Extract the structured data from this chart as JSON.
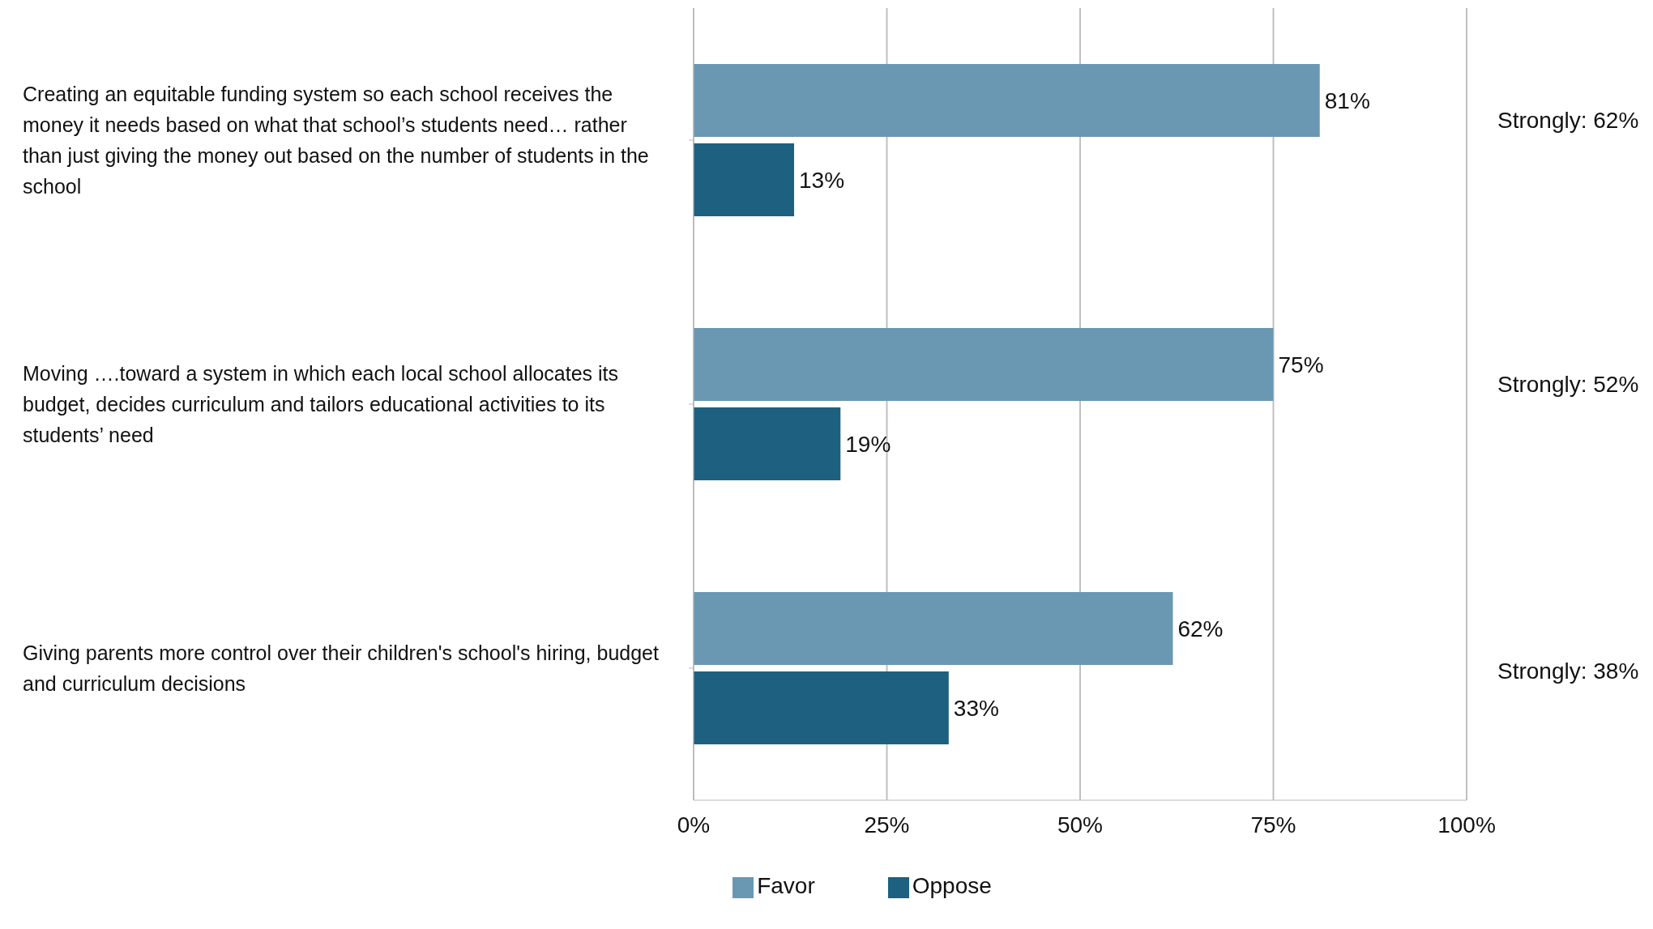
{
  "chart_data": {
    "type": "bar",
    "orientation": "horizontal",
    "categories": [
      "Creating an equitable funding system so each school receives the money it needs based on what that school’s students need… rather than just giving the money out based on the number of students in the school",
      "Moving ….toward a system in which each local school allocates its budget, decides curriculum and tailors educational activities to its students’ need",
      "Giving parents more control over their children's school's hiring, budget and curriculum decisions"
    ],
    "series": [
      {
        "name": "Favor",
        "color": "#6a98b2",
        "values": [
          81,
          75,
          62
        ],
        "value_labels": [
          "81%",
          "75%",
          "62%"
        ]
      },
      {
        "name": "Oppose",
        "color": "#1e6080",
        "values": [
          13,
          19,
          33
        ],
        "value_labels": [
          "13%",
          "19%",
          "33%"
        ]
      }
    ],
    "xlim": [
      0,
      100
    ],
    "xticks": [
      {
        "value": 0,
        "label": "0%"
      },
      {
        "value": 25,
        "label": "25%"
      },
      {
        "value": 50,
        "label": "50%"
      },
      {
        "value": 75,
        "label": "75%"
      },
      {
        "value": 100,
        "label": "100%"
      }
    ],
    "annotations": [
      "Strongly: 62%",
      "Strongly: 52%",
      "Strongly: 38%"
    ],
    "grid": "x",
    "legend": "bottom"
  }
}
